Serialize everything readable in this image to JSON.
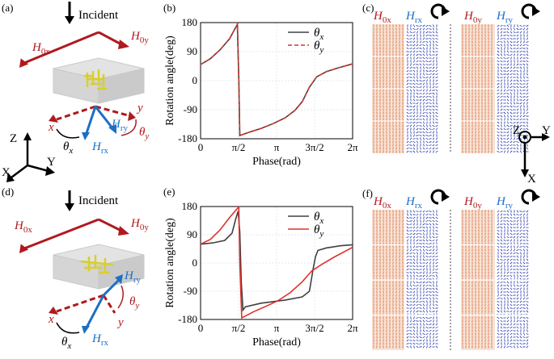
{
  "panels": {
    "a": {
      "label": "(a)",
      "incident": "Incident",
      "h0x": "H",
      "h0x_sub": "0x",
      "h0y": "H",
      "h0y_sub": "0y",
      "hrx": "H",
      "hrx_sub": "rx",
      "hry": "H",
      "hry_sub": "ry",
      "x": "x",
      "y": "y",
      "thx": "θ",
      "thx_sub": "x",
      "thy": "θ",
      "thy_sub": "y"
    },
    "b": {
      "label": "(b)"
    },
    "c": {
      "label": "(c)",
      "h0x": "H",
      "h0x_sub": "0x",
      "hrx": "H",
      "hrx_sub": "rx",
      "h0y": "H",
      "h0y_sub": "0y",
      "hry": "H",
      "hry_sub": "ry"
    },
    "d": {
      "label": "(d)",
      "incident": "Incident",
      "h0x": "H",
      "h0x_sub": "0x",
      "h0y": "H",
      "h0y_sub": "0y",
      "hrx": "H",
      "hrx_sub": "rx",
      "hry": "H",
      "hry_sub": "ry",
      "x": "x",
      "y": "y",
      "thx": "θ",
      "thx_sub": "x",
      "thy": "θ",
      "thy_sub": "y"
    },
    "e": {
      "label": "(e)"
    },
    "f": {
      "label": "(f)",
      "h0x": "H",
      "h0x_sub": "0x",
      "hrx": "H",
      "hrx_sub": "rx",
      "h0y": "H",
      "h0y_sub": "0y",
      "hry": "H",
      "hry_sub": "ry"
    }
  },
  "axes_left": {
    "z": "Z",
    "x": "X",
    "y": "Y"
  },
  "axes_right": {
    "z": "Z",
    "y": "Y",
    "x": "X"
  },
  "colors": {
    "red": "#b0191e",
    "blue": "#1d6fc4",
    "dark": "#404040",
    "orange": "#d8602a",
    "navy": "#1c2fa8"
  },
  "chart_data": [
    {
      "type": "line",
      "panel": "b",
      "xlabel": "Phase(rad)",
      "ylabel": "Rotation angle(deg)",
      "xticks": [
        "0",
        "π/2",
        "π",
        "3π/2",
        "2π"
      ],
      "yticks": [
        "180",
        "90",
        "0",
        "-90",
        "-180"
      ],
      "xlim": [
        0,
        6.283
      ],
      "ylim": [
        -180,
        180
      ],
      "grid": true,
      "legend": "top-right",
      "series": [
        {
          "name": "θ",
          "sub": "x",
          "style": "solid",
          "color": "#404040",
          "x": [
            0,
            0.4,
            0.8,
            1.2,
            1.45,
            1.52,
            1.58,
            1.62,
            2.0,
            2.5,
            3.0,
            3.5,
            3.9,
            4.2,
            4.5,
            4.8,
            5.2,
            5.7,
            6.28
          ],
          "y": [
            50,
            68,
            95,
            130,
            165,
            175,
            0,
            -170,
            -160,
            -148,
            -133,
            -115,
            -92,
            -65,
            -20,
            12,
            28,
            40,
            52
          ]
        },
        {
          "name": "θ",
          "sub": "y",
          "style": "dashed",
          "color": "#d9342b",
          "x": [
            0,
            0.4,
            0.8,
            1.2,
            1.45,
            1.52,
            1.58,
            1.62,
            2.0,
            2.5,
            3.0,
            3.5,
            3.9,
            4.2,
            4.5,
            4.8,
            5.2,
            5.7,
            6.28
          ],
          "y": [
            50,
            68,
            95,
            130,
            165,
            175,
            0,
            -170,
            -160,
            -148,
            -133,
            -115,
            -92,
            -65,
            -20,
            12,
            28,
            40,
            52
          ]
        }
      ]
    },
    {
      "type": "line",
      "panel": "e",
      "xlabel": "Phase(rad)",
      "ylabel": "Rotation angle(deg)",
      "xticks": [
        "0",
        "π/2",
        "π",
        "3π/2",
        "2π"
      ],
      "yticks": [
        "180",
        "90",
        "0",
        "-90",
        "-180"
      ],
      "xlim": [
        0,
        6.283
      ],
      "ylim": [
        -180,
        180
      ],
      "grid": true,
      "legend": "top-right",
      "series": [
        {
          "name": "θ",
          "sub": "x",
          "style": "solid",
          "color": "#404040",
          "x": [
            0,
            0.5,
            1.0,
            1.3,
            1.45,
            1.55,
            1.62,
            1.68,
            1.75,
            1.85,
            2.5,
            3.5,
            4.2,
            4.5,
            4.65,
            4.75,
            4.85,
            5.2,
            5.8,
            6.28
          ],
          "y": [
            60,
            64,
            72,
            95,
            140,
            165,
            100,
            -60,
            -150,
            -140,
            -128,
            -118,
            -108,
            -90,
            -20,
            20,
            40,
            48,
            55,
            58
          ]
        },
        {
          "name": "θ",
          "sub": "y",
          "style": "solid",
          "color": "#e0302c",
          "x": [
            0,
            0.4,
            0.8,
            1.2,
            1.5,
            1.58,
            1.62,
            1.7,
            2.2,
            2.7,
            3.2,
            3.7,
            4.2,
            4.6,
            5.0,
            5.5,
            6.28
          ],
          "y": [
            60,
            75,
            105,
            145,
            172,
            178,
            0,
            -175,
            -155,
            -138,
            -120,
            -95,
            -60,
            -25,
            -5,
            18,
            50
          ]
        }
      ]
    }
  ]
}
